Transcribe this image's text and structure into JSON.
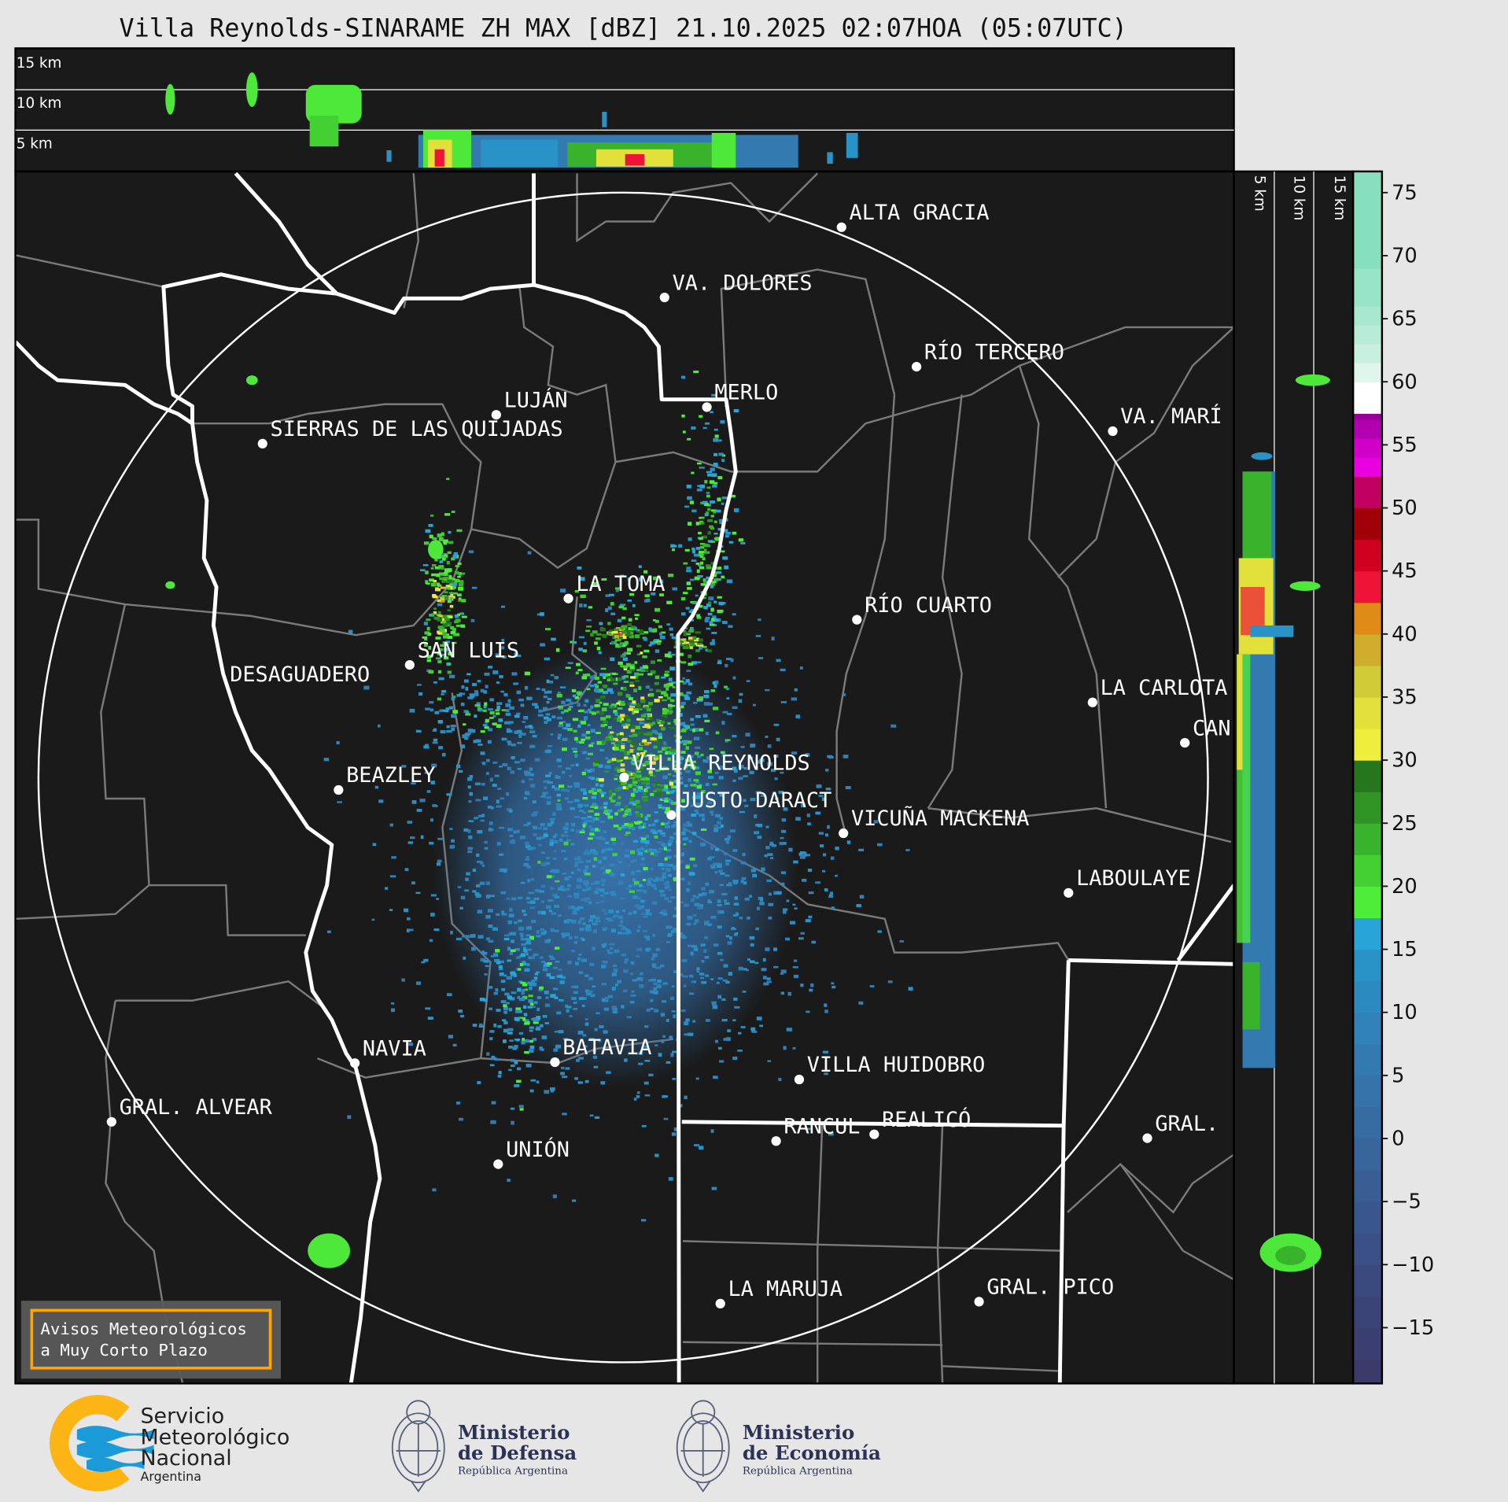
{
  "title": "Villa Reynolds-SINARAME ZH MAX [dBZ] 21.10.2025 02:07HOA (05:07UTC)",
  "top_panel": {
    "labels": [
      "15 km",
      "10 km",
      "5 km"
    ]
  },
  "side_panel": {
    "labels": [
      "5 km",
      "10 km",
      "15 km"
    ]
  },
  "map": {
    "background": "#1a1a1a",
    "cities": [
      "ALTA GRACIA",
      "VA. DOLORES",
      "RÍO TERCERO",
      "MERLO",
      "LUJÁN",
      "VA. MARÍ",
      "SIERRAS DE LAS QUIJADAS",
      "LA TOMA",
      "RÍO CUARTO",
      "SAN LUIS",
      "DESAGUADERO",
      "LA CARLOTA",
      "CAN",
      "VILLA REYNOLDS",
      "BEAZLEY",
      "JUSTO DARACT",
      "VICUÑA MACKENA",
      "LABOULAYE",
      "NAVIA",
      "BATAVIA",
      "VILLA HUIDOBRO",
      "GRAL. ALVEAR",
      "RANCUL",
      "REALICÓ",
      "GRAL.",
      "UNIÓN",
      "LA MARUJA",
      "GRAL. PICO"
    ]
  },
  "notice": {
    "line1": "Avisos Meteorológicos",
    "line2": "a Muy Corto Plazo",
    "border_color": "#ffa500"
  },
  "colorbar": {
    "unit": "dBZ",
    "range": [
      -19.5,
      76.7
    ],
    "ticks": [
      "75",
      "70",
      "65",
      "60",
      "55",
      "50",
      "45",
      "40",
      "35",
      "30",
      "25",
      "20",
      "15",
      "10",
      "5",
      "0",
      "−5",
      "−10",
      "−15"
    ],
    "tick_values": [
      75,
      70,
      65,
      60,
      55,
      50,
      45,
      40,
      35,
      30,
      25,
      20,
      15,
      10,
      5,
      0,
      -5,
      -10,
      -15
    ],
    "bins": [
      {
        "from": -19.5,
        "color": "#3b3a6a"
      },
      {
        "from": -17.5,
        "color": "#3b3e70"
      },
      {
        "from": -15,
        "color": "#3b4477"
      },
      {
        "from": -12.5,
        "color": "#3b4a7e"
      },
      {
        "from": -10,
        "color": "#3a5086"
      },
      {
        "from": -7.5,
        "color": "#3a578d"
      },
      {
        "from": -5,
        "color": "#395e94"
      },
      {
        "from": -2.5,
        "color": "#38659b"
      },
      {
        "from": 0,
        "color": "#376ca3"
      },
      {
        "from": 2.5,
        "color": "#3573aa"
      },
      {
        "from": 5,
        "color": "#337ab1"
      },
      {
        "from": 7.5,
        "color": "#3082b8"
      },
      {
        "from": 10,
        "color": "#2c8ac0"
      },
      {
        "from": 12.5,
        "color": "#2993c8"
      },
      {
        "from": 15,
        "color": "#28a4d8"
      },
      {
        "from": 17.5,
        "color": "#4ded3a"
      },
      {
        "from": 20,
        "color": "#43d033"
      },
      {
        "from": 22.5,
        "color": "#39b22c"
      },
      {
        "from": 25,
        "color": "#2f9424"
      },
      {
        "from": 27.5,
        "color": "#25761d"
      },
      {
        "from": 30,
        "color": "#eeee3c"
      },
      {
        "from": 32.5,
        "color": "#e2e03a"
      },
      {
        "from": 35,
        "color": "#cfcc38"
      },
      {
        "from": 37.5,
        "color": "#d0ac2c"
      },
      {
        "from": 40,
        "color": "#e08a18"
      },
      {
        "from": 42.5,
        "color": "#ee1438"
      },
      {
        "from": 45,
        "color": "#d00020"
      },
      {
        "from": 47.5,
        "color": "#a00008"
      },
      {
        "from": 50,
        "color": "#c00060"
      },
      {
        "from": 52.5,
        "color": "#e800e0"
      },
      {
        "from": 54,
        "color": "#d000c8"
      },
      {
        "from": 55.5,
        "color": "#b000b0"
      },
      {
        "from": 57,
        "color": "#980098"
      },
      {
        "from": 57.5,
        "color": "#ffffff"
      },
      {
        "from": 60,
        "color": "#e0f5ec"
      },
      {
        "from": 61.5,
        "color": "#c8f0e0"
      },
      {
        "from": 63,
        "color": "#b8ecd8"
      },
      {
        "from": 64.5,
        "color": "#a8e8d0"
      },
      {
        "from": 66,
        "color": "#98e4c8"
      },
      {
        "from": 69,
        "color": "#88dfc0"
      }
    ]
  },
  "logos": {
    "smn": {
      "line1": "Servicio",
      "line2": "Meteorológico",
      "line3": "Nacional",
      "line4": "Argentina"
    },
    "defensa": {
      "line1": "Ministerio",
      "line2": "de Defensa",
      "line3": "República Argentina"
    },
    "economia": {
      "line1": "Ministerio",
      "line2": "de Economía",
      "line3": "República Argentina"
    }
  }
}
